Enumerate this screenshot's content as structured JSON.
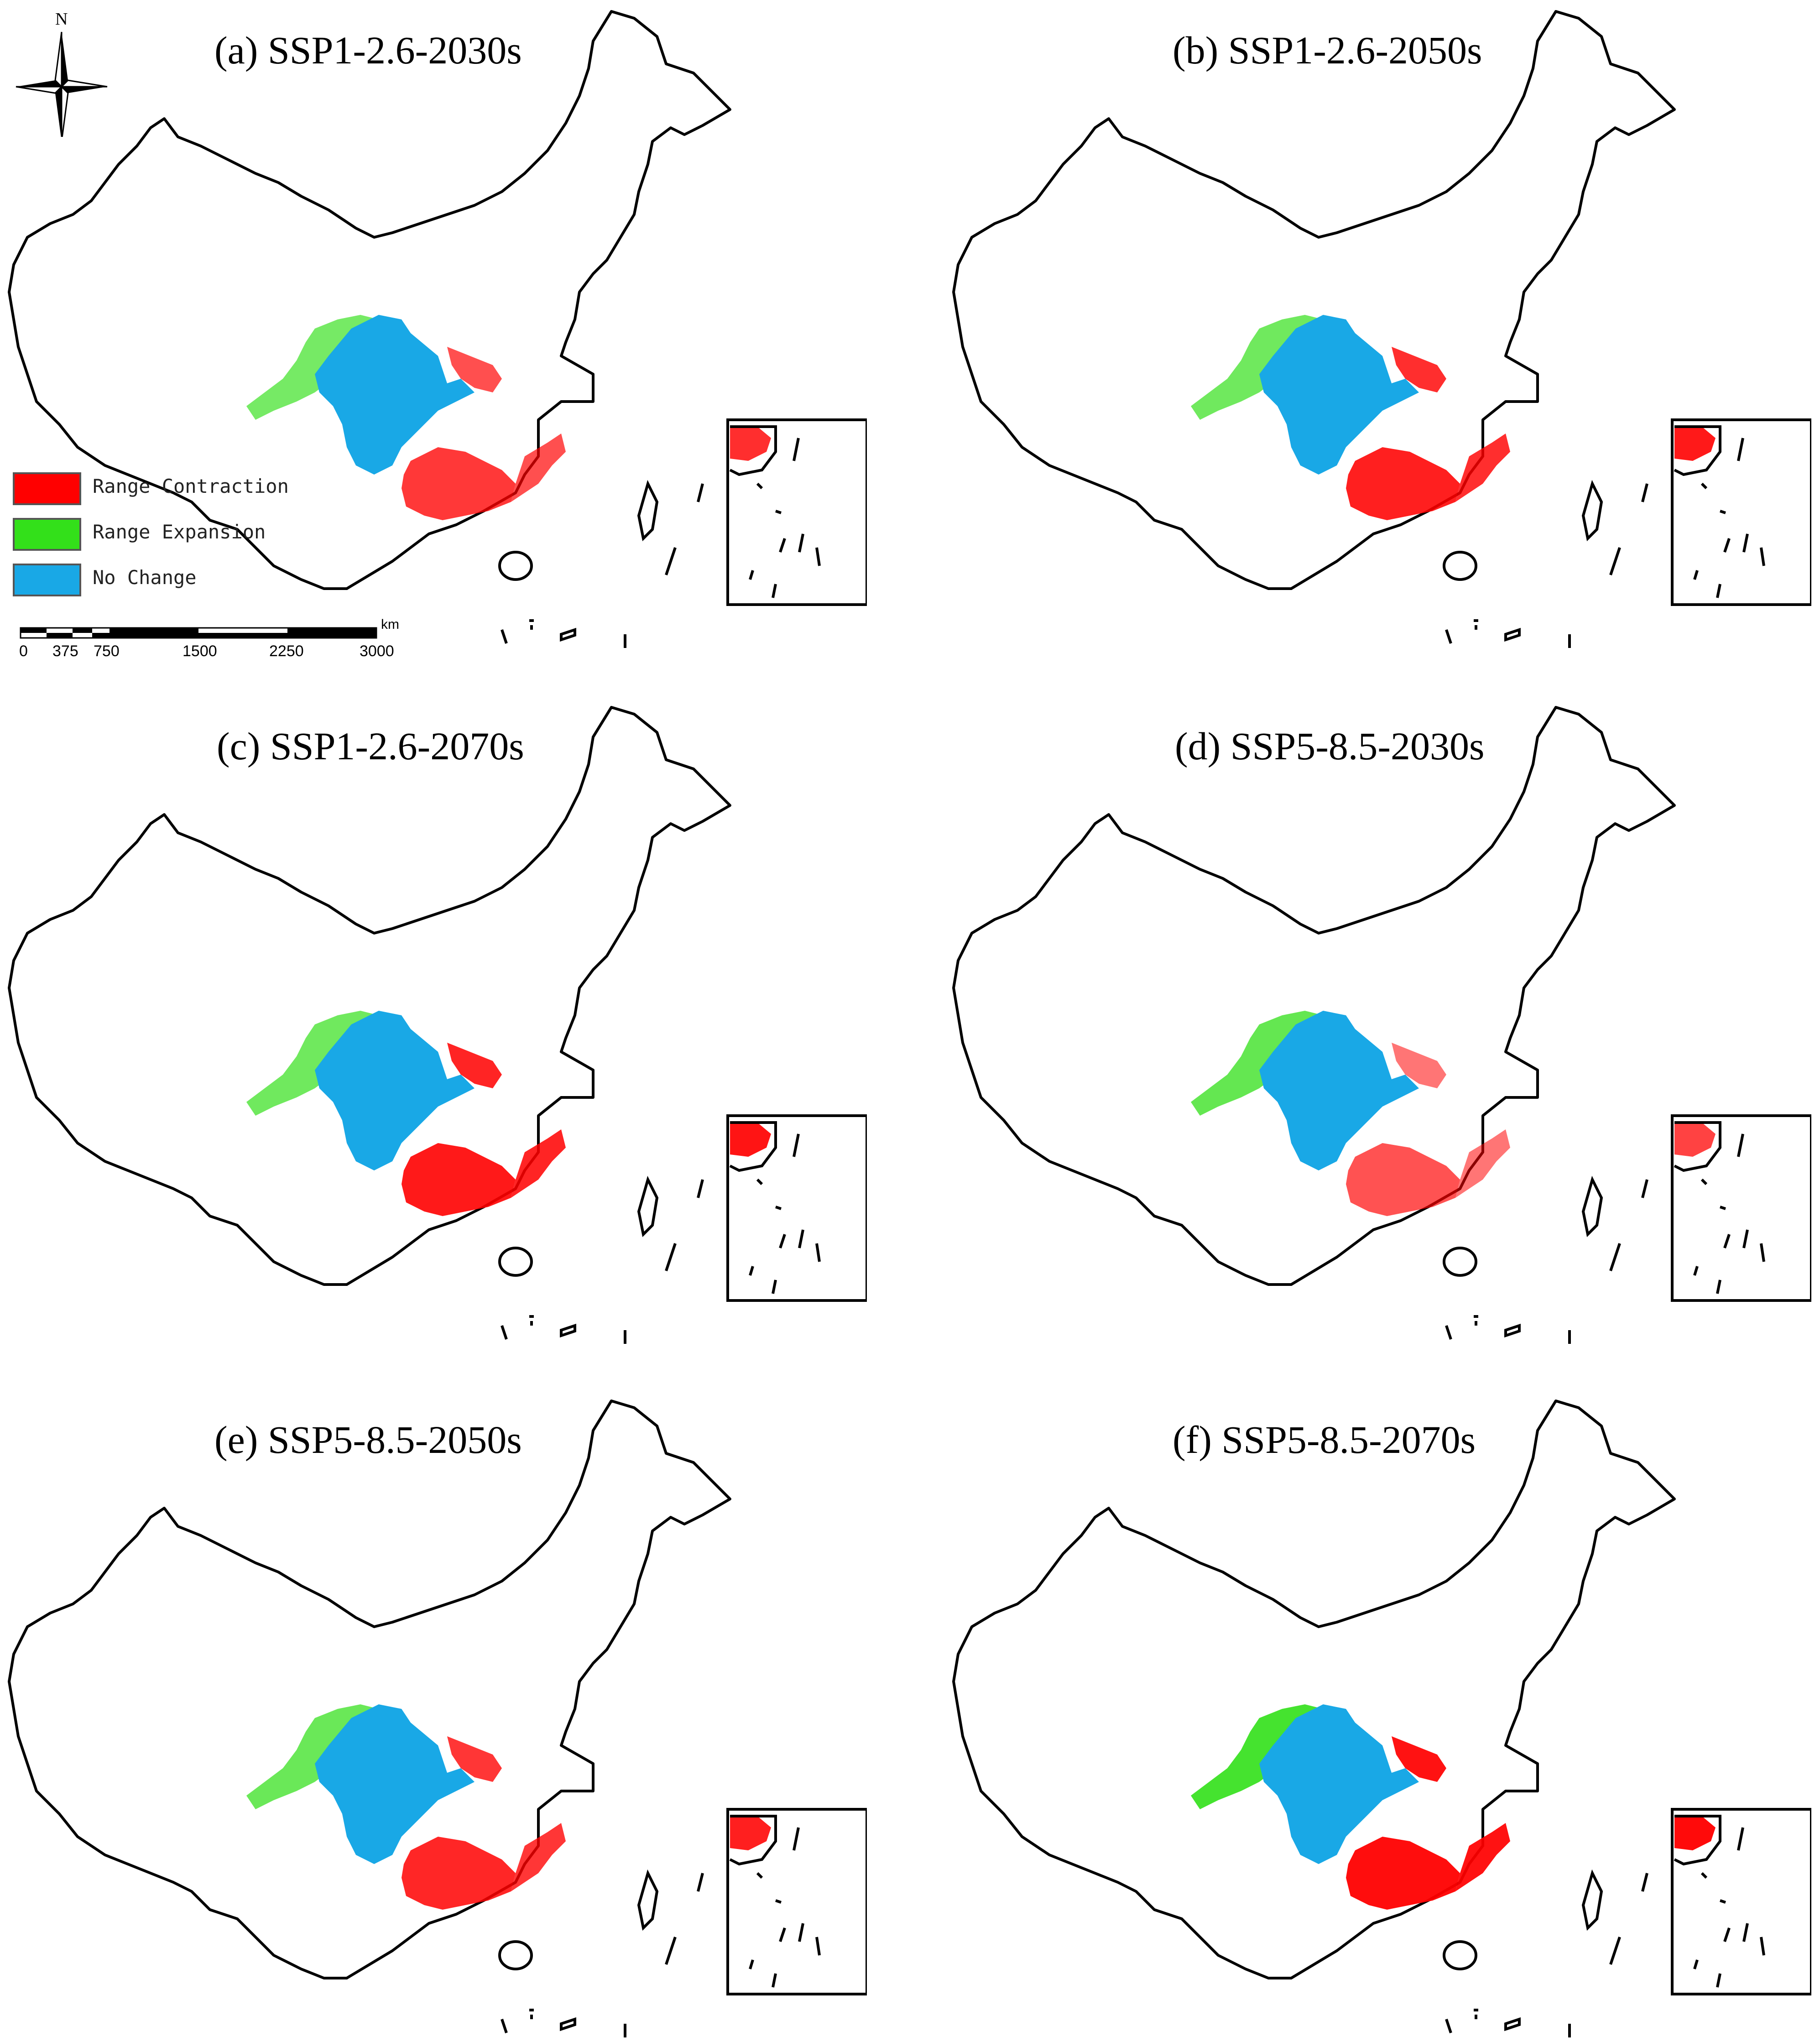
{
  "panels": [
    {
      "title": "(a) SSP1-2.6-2030s",
      "scenario": "SSP1-2.6",
      "period": "2030s",
      "contraction_level": 0.55,
      "expansion_level": 0.45
    },
    {
      "title": "(b) SSP1-2.6-2050s",
      "scenario": "SSP1-2.6",
      "period": "2050s",
      "contraction_level": 0.75,
      "expansion_level": 0.5
    },
    {
      "title": "(c) SSP1-2.6-2070s",
      "scenario": "SSP1-2.6",
      "period": "2070s",
      "contraction_level": 0.8,
      "expansion_level": 0.5
    },
    {
      "title": "(d) SSP5-8.5-2030s",
      "scenario": "SSP5-8.5",
      "period": "2030s",
      "contraction_level": 0.35,
      "expansion_level": 0.6
    },
    {
      "title": "(e) SSP5-8.5-2050s",
      "scenario": "SSP5-8.5",
      "period": "2050s",
      "contraction_level": 0.7,
      "expansion_level": 0.55
    },
    {
      "title": "(f) SSP5-8.5-2070s",
      "scenario": "SSP5-8.5",
      "period": "2070s",
      "contraction_level": 0.9,
      "expansion_level": 0.85
    }
  ],
  "legend": {
    "items": [
      {
        "label": "Range Contraction",
        "color": "#ff0000"
      },
      {
        "label": "Range Expansion",
        "color": "#33e01a"
      },
      {
        "label": "No Change",
        "color": "#19a8e6"
      }
    ]
  },
  "north_arrow": {
    "label": "N",
    "icon": "compass-rose-icon"
  },
  "scale_bar": {
    "unit": "km",
    "ticks": [
      "0",
      "375",
      "750",
      "1500",
      "2250",
      "3000"
    ]
  }
}
